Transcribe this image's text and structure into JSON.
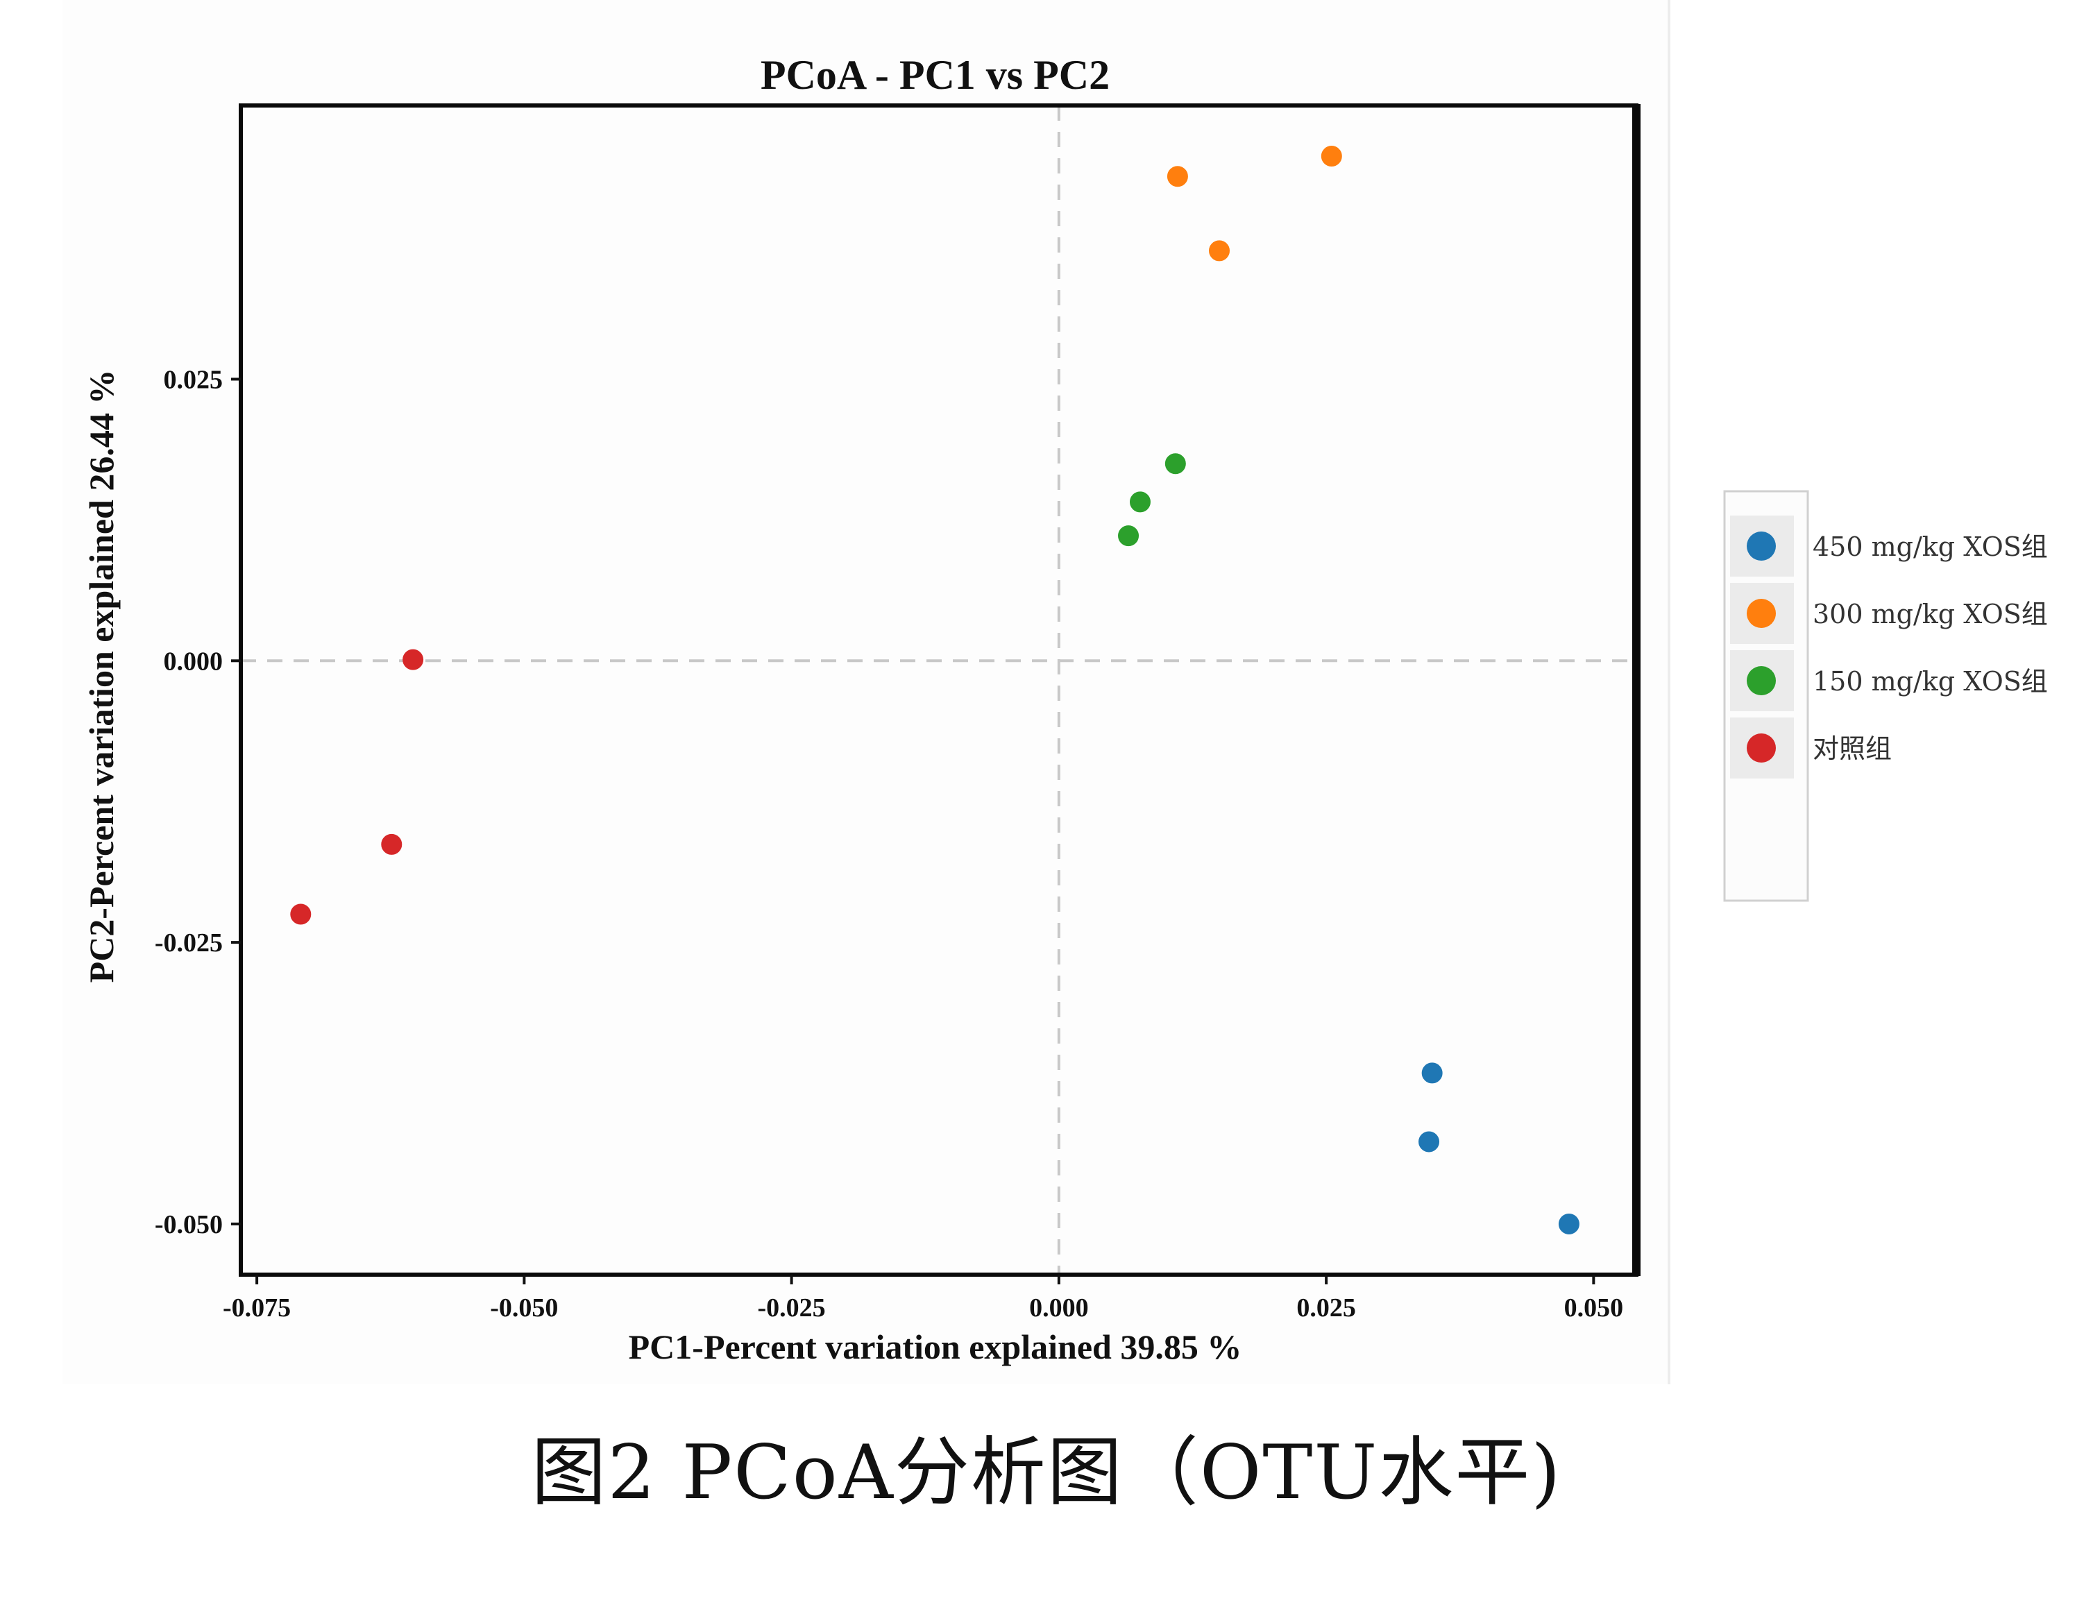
{
  "caption": "图2 PCoA分析图（OTU水平)",
  "chart_data": {
    "type": "scatter",
    "title": "PCoA - PC1 vs PC2",
    "xlabel": "PC1-Percent variation explained 39.85 %",
    "ylabel": "PC2-Percent variation explained 26.44 %",
    "xlim": [
      -0.0765,
      0.054
    ],
    "ylim": [
      -0.0545,
      0.0493
    ],
    "xticks": [
      -0.075,
      -0.05,
      -0.025,
      0.0,
      0.025,
      0.05
    ],
    "xtick_labels": [
      "-0.075",
      "-0.050",
      "-0.025",
      "0.000",
      "0.025",
      "0.050"
    ],
    "yticks": [
      -0.05,
      -0.025,
      0.0,
      0.025
    ],
    "ytick_labels": [
      "-0.050",
      "-0.025",
      "0.000",
      "0.025"
    ],
    "reference_lines": {
      "x": 0.0,
      "y": 0.0,
      "style": "dashed"
    },
    "legend_position": "right",
    "grid": false,
    "series": [
      {
        "name": "450 mg/kg XOS组",
        "color": "#1f77b4",
        "points": [
          [
            0.0349,
            -0.0366
          ],
          [
            0.0346,
            -0.0427
          ],
          [
            0.0477,
            -0.05
          ]
        ]
      },
      {
        "name": "300 mg/kg XOS组",
        "color": "#ff7f0e",
        "points": [
          [
            0.0111,
            0.043
          ],
          [
            0.0255,
            0.0448
          ],
          [
            0.015,
            0.0364
          ]
        ]
      },
      {
        "name": "150 mg/kg XOS组",
        "color": "#2ca02c",
        "points": [
          [
            0.0109,
            0.0175
          ],
          [
            0.0076,
            0.0141
          ],
          [
            0.0065,
            0.0111
          ]
        ]
      },
      {
        "name": "对照组",
        "color": "#d62728",
        "points": [
          [
            -0.0604,
            0.0001
          ],
          [
            -0.0624,
            -0.0163
          ],
          [
            -0.0709,
            -0.0225
          ]
        ]
      }
    ]
  }
}
